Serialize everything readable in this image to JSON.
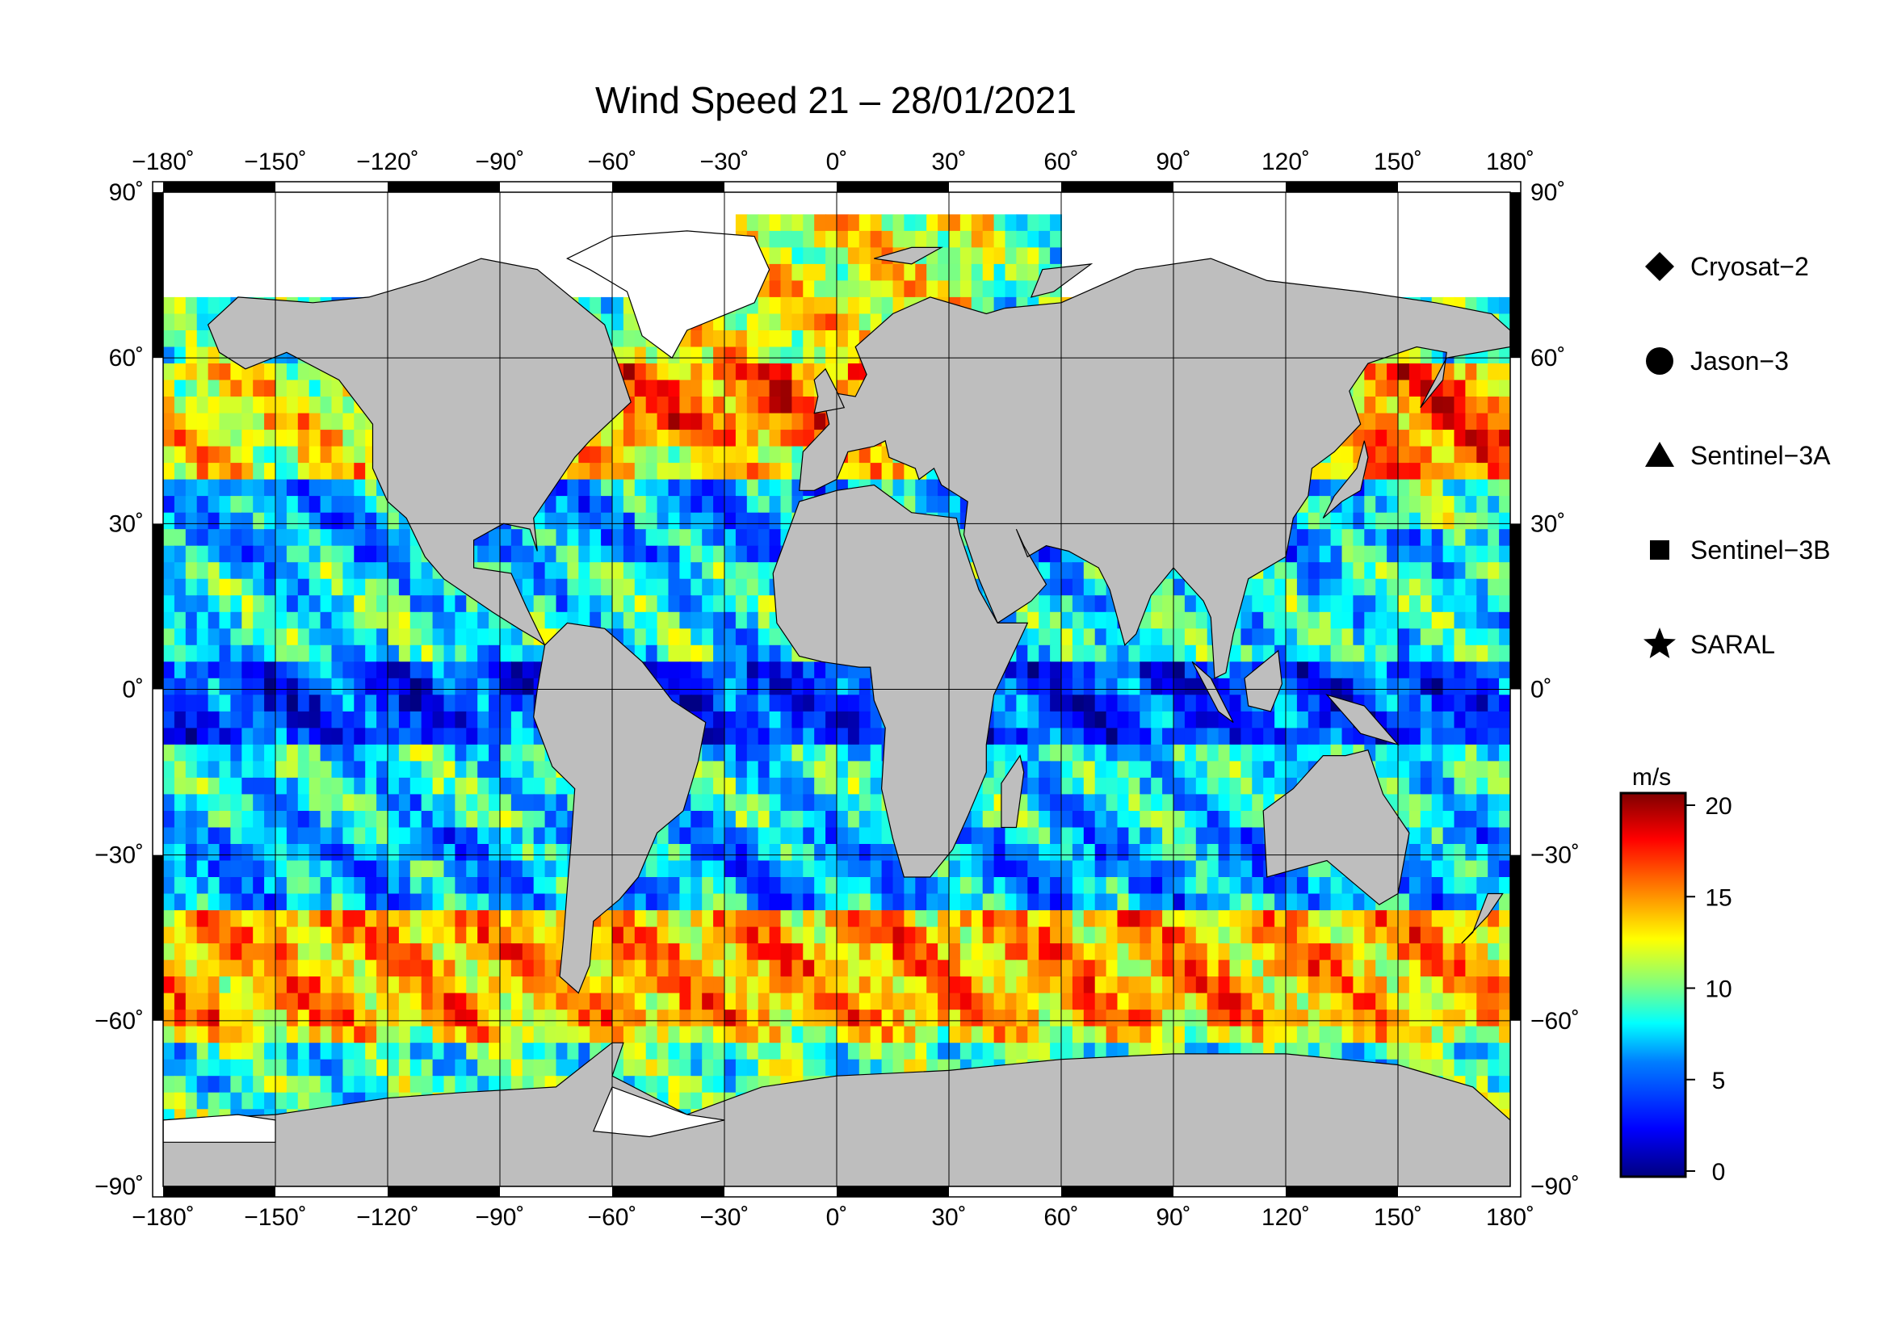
{
  "title": "Wind Speed 21 – 28/01/2021",
  "map": {
    "projection": "equirectangular",
    "lon_range": [
      -180,
      180
    ],
    "lat_range": [
      -90,
      90
    ],
    "grid_step_lon": 30,
    "grid_step_lat": 30,
    "land_color": "#bebebe",
    "ice_color": "#ffffff",
    "lon_tick_labels": [
      "−180˚",
      "−150˚",
      "−120˚",
      "−90˚",
      "−60˚",
      "−30˚",
      "0˚",
      "30˚",
      "60˚",
      "90˚",
      "120˚",
      "150˚",
      "180˚"
    ],
    "lat_tick_labels": [
      "90˚",
      "60˚",
      "30˚",
      "0˚",
      "−30˚",
      "−60˚",
      "−90˚"
    ]
  },
  "legend": {
    "items": [
      {
        "label": "Cryosat−2",
        "marker": "diamond"
      },
      {
        "label": "Jason−3",
        "marker": "circle"
      },
      {
        "label": "Sentinel−3A",
        "marker": "triangle"
      },
      {
        "label": "Sentinel−3B",
        "marker": "square"
      },
      {
        "label": "SARAL",
        "marker": "star"
      }
    ]
  },
  "colorbar": {
    "unit": "m/s",
    "min": 0,
    "max": 20,
    "tick_labels": [
      "20",
      "15",
      "10",
      "5",
      "0"
    ],
    "colors": [
      "#00007f",
      "#0000ff",
      "#007fff",
      "#00ffff",
      "#7fff7f",
      "#ffff00",
      "#ff7f00",
      "#ff0000",
      "#7f0000"
    ]
  }
}
